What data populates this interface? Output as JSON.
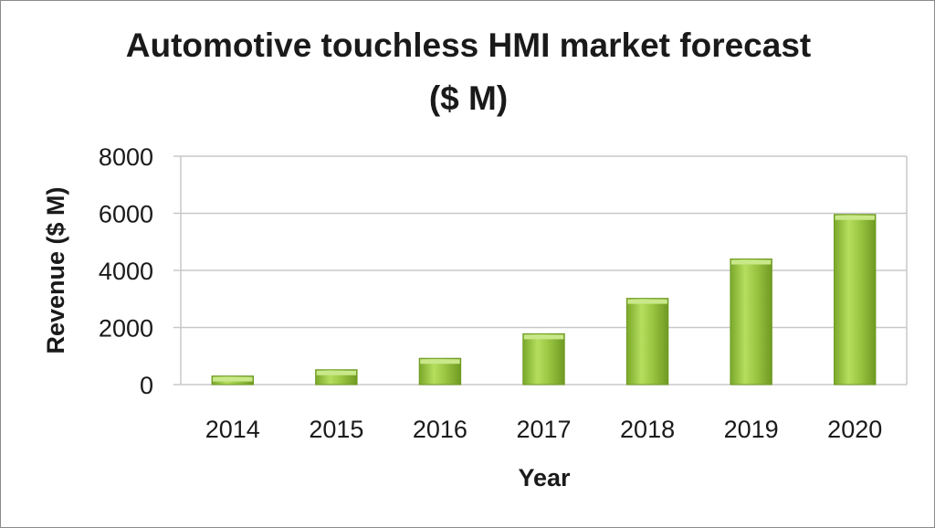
{
  "chart_data": {
    "type": "bar",
    "title_line1": "Automotive touchless HMI market forecast",
    "title_line2": "($ M)",
    "xlabel": "Year",
    "ylabel": "Revenue ($ M)",
    "ylim": [
      0,
      8000
    ],
    "yticks": [
      "0",
      "2000",
      "4000",
      "6000",
      "8000"
    ],
    "grid": true,
    "categories": [
      "2014",
      "2015",
      "2016",
      "2017",
      "2018",
      "2019",
      "2020"
    ],
    "values": [
      300,
      520,
      920,
      1780,
      3020,
      4400,
      5960
    ],
    "colors": {
      "bar": "#92c13a",
      "bar_light": "#c9e88a",
      "bar_dark": "#6e9a22",
      "grid": "#c8c8c8"
    }
  }
}
